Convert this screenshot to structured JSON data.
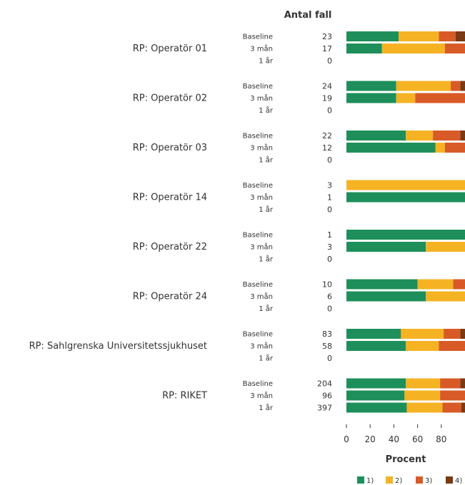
{
  "chart_data": {
    "type": "bar",
    "orientation": "horizontal",
    "stacked": true,
    "count_header": "Antal fall",
    "xlabel": "Procent",
    "xlim": [
      0,
      100
    ],
    "xticks": [
      "0",
      "20",
      "40",
      "60",
      "80"
    ],
    "legend_position": "bottom-right",
    "series": [
      {
        "name": "1)",
        "color": "#1e8f5a"
      },
      {
        "name": "2)",
        "color": "#f5b324"
      },
      {
        "name": "3)",
        "color": "#d85a27"
      },
      {
        "name": "4)",
        "color": "#7a3a14"
      }
    ],
    "groups": [
      {
        "label": "RP: Operatör 01",
        "rows": [
          {
            "label": "Baseline",
            "count": "23",
            "values": [
              44,
              34,
              14,
              8
            ]
          },
          {
            "label": "3 mån",
            "count": "17",
            "values": [
              30,
              53,
              17,
              0
            ]
          },
          {
            "label": "1 år",
            "count": "0",
            "values": [
              0,
              0,
              0,
              0
            ]
          }
        ]
      },
      {
        "label": "RP: Operatör 02",
        "rows": [
          {
            "label": "Baseline",
            "count": "24",
            "values": [
              42,
              46,
              8,
              4
            ]
          },
          {
            "label": "3 mån",
            "count": "19",
            "values": [
              42,
              16,
              42,
              0
            ]
          },
          {
            "label": "1 år",
            "count": "0",
            "values": [
              0,
              0,
              0,
              0
            ]
          }
        ]
      },
      {
        "label": "RP: Operatör 03",
        "rows": [
          {
            "label": "Baseline",
            "count": "22",
            "values": [
              50,
              23,
              23,
              4
            ]
          },
          {
            "label": "3 mån",
            "count": "12",
            "values": [
              75,
              8,
              17,
              0
            ]
          },
          {
            "label": "1 år",
            "count": "0",
            "values": [
              0,
              0,
              0,
              0
            ]
          }
        ]
      },
      {
        "label": "RP: Operatör 14",
        "rows": [
          {
            "label": "Baseline",
            "count": "3",
            "values": [
              0,
              100,
              0,
              0
            ]
          },
          {
            "label": "3 mån",
            "count": "1",
            "values": [
              100,
              0,
              0,
              0
            ]
          },
          {
            "label": "1 år",
            "count": "0",
            "values": [
              0,
              0,
              0,
              0
            ]
          }
        ]
      },
      {
        "label": "RP: Operatör 22",
        "rows": [
          {
            "label": "Baseline",
            "count": "1",
            "values": [
              100,
              0,
              0,
              0
            ]
          },
          {
            "label": "3 mån",
            "count": "3",
            "values": [
              67,
              33,
              0,
              0
            ]
          },
          {
            "label": "1 år",
            "count": "0",
            "values": [
              0,
              0,
              0,
              0
            ]
          }
        ]
      },
      {
        "label": "RP: Operatör 24",
        "rows": [
          {
            "label": "Baseline",
            "count": "10",
            "values": [
              60,
              30,
              10,
              0
            ]
          },
          {
            "label": "3 mån",
            "count": "6",
            "values": [
              67,
              33,
              0,
              0
            ]
          },
          {
            "label": "1 år",
            "count": "0",
            "values": [
              0,
              0,
              0,
              0
            ]
          }
        ]
      },
      {
        "label": "RP: Sahlgrenska Universitetssjukhuset",
        "rows": [
          {
            "label": "Baseline",
            "count": "83",
            "values": [
              46,
              36,
              14,
              4
            ]
          },
          {
            "label": "3 mån",
            "count": "58",
            "values": [
              50,
              28,
              22,
              0
            ]
          },
          {
            "label": "1 år",
            "count": "0",
            "values": [
              0,
              0,
              0,
              0
            ]
          }
        ]
      },
      {
        "label": "RP: RIKET",
        "rows": [
          {
            "label": "Baseline",
            "count": "204",
            "values": [
              50,
              29,
              17,
              4
            ]
          },
          {
            "label": "3 mån",
            "count": "96",
            "values": [
              49,
              30,
              21,
              0
            ]
          },
          {
            "label": "1 år",
            "count": "397",
            "values": [
              51,
              30,
              16,
              3
            ]
          }
        ]
      }
    ]
  }
}
